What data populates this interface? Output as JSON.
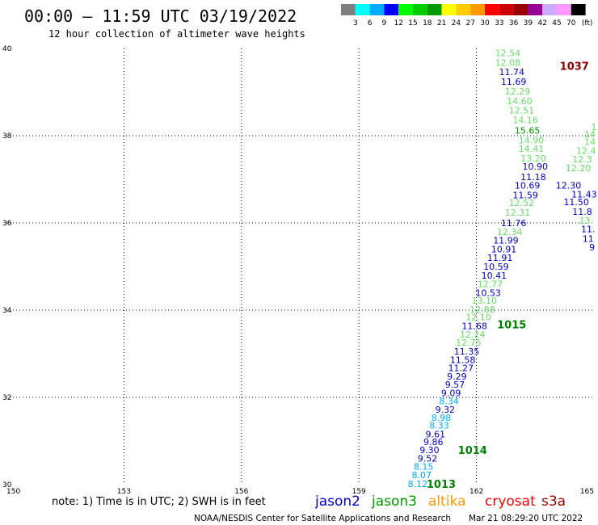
{
  "chart_data": {
    "type": "scatter",
    "title": "00:00 – 11:59 UTC 03/19/2022",
    "subtitle": "12 hour collection of altimeter wave heights",
    "note": "note: 1) Time is in UTC; 2) SWH is in feet",
    "credit": "NOAA/NESDIS Center for Satellite Applications and Research",
    "generated": "Mar 21 08:29:20 UTC 2022",
    "xlim": [
      150,
      165
    ],
    "ylim": [
      30,
      40
    ],
    "x_ticks": [
      150,
      153,
      156,
      159,
      162,
      165
    ],
    "y_ticks": [
      30,
      32,
      34,
      36,
      38,
      40
    ],
    "grid": true,
    "colorscale": {
      "labels": [
        "3",
        "6",
        "9",
        "12",
        "15",
        "18",
        "21",
        "24",
        "27",
        "30",
        "33",
        "36",
        "39",
        "42",
        "45",
        "70"
      ],
      "unit": "(ft)",
      "colors": [
        "#7f7f7f",
        "#00ffff",
        "#00aaff",
        "#0000ff",
        "#00ff00",
        "#00cc00",
        "#009900",
        "#ffff00",
        "#ffcc00",
        "#ff9900",
        "#ff0000",
        "#cc0000",
        "#990000",
        "#990099",
        "#ccaaff",
        "#ff99ff",
        "#000000"
      ]
    },
    "legend": [
      {
        "name": "jason2",
        "color": "#0000cc"
      },
      {
        "name": "jason3",
        "color": "#009900"
      },
      {
        "name": "altika",
        "color": "#ff9900"
      },
      {
        "name": "cryosat",
        "color": "#ff0000"
      },
      {
        "name": "s3a",
        "color": "#990000"
      }
    ],
    "pressure_labels": [
      {
        "text": "1037",
        "x": 164.5,
        "y": 39.58,
        "color": "#8b0000"
      },
      {
        "text": "1015",
        "x": 162.9,
        "y": 33.66,
        "color": "#008000"
      },
      {
        "text": "1014",
        "x": 161.9,
        "y": 30.78,
        "color": "#008000"
      },
      {
        "text": "1013",
        "x": 161.1,
        "y": 30.0,
        "color": "#008000"
      }
    ],
    "points": [
      {
        "x": 162.8,
        "y": 39.9,
        "v": "12.54",
        "c": "#66dd66"
      },
      {
        "x": 162.8,
        "y": 39.68,
        "v": "12.08",
        "c": "#66dd66"
      },
      {
        "x": 162.9,
        "y": 39.46,
        "v": "11.74",
        "c": "#0000cc"
      },
      {
        "x": 162.95,
        "y": 39.24,
        "v": "11.69",
        "c": "#0000cc"
      },
      {
        "x": 163.05,
        "y": 39.02,
        "v": "12.29",
        "c": "#66dd66"
      },
      {
        "x": 163.1,
        "y": 38.8,
        "v": "14.60",
        "c": "#66dd66"
      },
      {
        "x": 163.15,
        "y": 38.58,
        "v": "12.51",
        "c": "#66dd66"
      },
      {
        "x": 163.25,
        "y": 38.36,
        "v": "14.16",
        "c": "#66dd66"
      },
      {
        "x": 163.3,
        "y": 38.12,
        "v": "15.65",
        "c": "#009900"
      },
      {
        "x": 163.4,
        "y": 37.9,
        "v": "14.90",
        "c": "#66dd66"
      },
      {
        "x": 163.4,
        "y": 37.7,
        "v": "14.41",
        "c": "#66dd66"
      },
      {
        "x": 163.45,
        "y": 37.48,
        "v": "13.20",
        "c": "#66dd66"
      },
      {
        "x": 163.5,
        "y": 37.3,
        "v": "10.90",
        "c": "#0000cc"
      },
      {
        "x": 163.45,
        "y": 37.06,
        "v": "11.18",
        "c": "#0000cc"
      },
      {
        "x": 163.3,
        "y": 36.86,
        "v": "10.69",
        "c": "#0000cc"
      },
      {
        "x": 163.25,
        "y": 36.64,
        "v": "11.59",
        "c": "#0000cc"
      },
      {
        "x": 163.15,
        "y": 36.46,
        "v": "12.52",
        "c": "#66dd66"
      },
      {
        "x": 163.05,
        "y": 36.24,
        "v": "12.31",
        "c": "#66dd66"
      },
      {
        "x": 162.95,
        "y": 36.0,
        "v": "11.76",
        "c": "#0000cc"
      },
      {
        "x": 162.85,
        "y": 35.8,
        "v": "12.34",
        "c": "#66dd66"
      },
      {
        "x": 162.75,
        "y": 35.6,
        "v": "11.99",
        "c": "#0000cc"
      },
      {
        "x": 162.7,
        "y": 35.4,
        "v": "10.91",
        "c": "#0000cc"
      },
      {
        "x": 162.6,
        "y": 35.2,
        "v": "11.91",
        "c": "#0000cc"
      },
      {
        "x": 162.5,
        "y": 35.0,
        "v": "10.59",
        "c": "#0000cc"
      },
      {
        "x": 162.45,
        "y": 34.8,
        "v": "10.41",
        "c": "#0000cc"
      },
      {
        "x": 162.35,
        "y": 34.6,
        "v": "12.77",
        "c": "#66dd66"
      },
      {
        "x": 162.3,
        "y": 34.4,
        "v": "10.53",
        "c": "#0000cc"
      },
      {
        "x": 162.2,
        "y": 34.22,
        "v": "13.10",
        "c": "#66dd66"
      },
      {
        "x": 162.15,
        "y": 34.02,
        "v": "12.88",
        "c": "#66dd66"
      },
      {
        "x": 162.05,
        "y": 33.84,
        "v": "12.10",
        "c": "#66dd66"
      },
      {
        "x": 161.95,
        "y": 33.64,
        "v": "11.68",
        "c": "#0000cc"
      },
      {
        "x": 161.9,
        "y": 33.44,
        "v": "12.24",
        "c": "#66dd66"
      },
      {
        "x": 161.8,
        "y": 33.26,
        "v": "12.75",
        "c": "#66dd66"
      },
      {
        "x": 161.75,
        "y": 33.06,
        "v": "11.35",
        "c": "#0000cc"
      },
      {
        "x": 161.65,
        "y": 32.86,
        "v": "11.58",
        "c": "#0000cc"
      },
      {
        "x": 161.6,
        "y": 32.68,
        "v": "11.27",
        "c": "#0000cc"
      },
      {
        "x": 161.5,
        "y": 32.48,
        "v": "9.29",
        "c": "#0000cc"
      },
      {
        "x": 161.45,
        "y": 32.3,
        "v": "9.57",
        "c": "#0000cc"
      },
      {
        "x": 161.35,
        "y": 32.1,
        "v": "9.09",
        "c": "#0000cc"
      },
      {
        "x": 161.3,
        "y": 31.92,
        "v": "8.34",
        "c": "#00aaff"
      },
      {
        "x": 161.2,
        "y": 31.72,
        "v": "9.32",
        "c": "#0000cc"
      },
      {
        "x": 161.1,
        "y": 31.54,
        "v": "8.98",
        "c": "#00aaff"
      },
      {
        "x": 161.05,
        "y": 31.36,
        "v": "8.33",
        "c": "#00aaff"
      },
      {
        "x": 160.95,
        "y": 31.16,
        "v": "9.61",
        "c": "#0000cc"
      },
      {
        "x": 160.9,
        "y": 30.98,
        "v": "9.86",
        "c": "#0000cc"
      },
      {
        "x": 160.8,
        "y": 30.8,
        "v": "9.30",
        "c": "#0000cc"
      },
      {
        "x": 160.75,
        "y": 30.6,
        "v": "9.52",
        "c": "#0000cc"
      },
      {
        "x": 160.65,
        "y": 30.42,
        "v": "8.15",
        "c": "#00aaff"
      },
      {
        "x": 160.6,
        "y": 30.22,
        "v": "8.07",
        "c": "#00aaff"
      },
      {
        "x": 160.5,
        "y": 30.02,
        "v": "8.12",
        "c": "#00aaff"
      },
      {
        "x": 164.9,
        "y": 38.04,
        "v": "14",
        "c": "#66dd66"
      },
      {
        "x": 164.9,
        "y": 37.86,
        "v": "14",
        "c": "#66dd66"
      },
      {
        "x": 164.8,
        "y": 37.66,
        "v": "12.4",
        "c": "#66dd66"
      },
      {
        "x": 164.7,
        "y": 37.46,
        "v": "12.3",
        "c": "#66dd66"
      },
      {
        "x": 164.6,
        "y": 37.26,
        "v": "12.20",
        "c": "#66dd66"
      },
      {
        "x": 164.35,
        "y": 36.86,
        "v": "12.30",
        "c": "#0000cc"
      },
      {
        "x": 164.75,
        "y": 36.66,
        "v": "11.43",
        "c": "#0000cc"
      },
      {
        "x": 164.55,
        "y": 36.48,
        "v": "11.50",
        "c": "#0000cc"
      },
      {
        "x": 164.7,
        "y": 36.26,
        "v": "11.8",
        "c": "#0000cc"
      },
      {
        "x": 164.8,
        "y": 36.06,
        "v": "13.",
        "c": "#66dd66"
      },
      {
        "x": 164.85,
        "y": 35.86,
        "v": "11.",
        "c": "#0000cc"
      },
      {
        "x": 164.85,
        "y": 35.64,
        "v": "11",
        "c": "#0000cc"
      },
      {
        "x": 164.95,
        "y": 35.44,
        "v": "9",
        "c": "#0000cc"
      },
      {
        "x": 165.0,
        "y": 38.2,
        "v": "1",
        "c": "#66dd66"
      }
    ]
  }
}
